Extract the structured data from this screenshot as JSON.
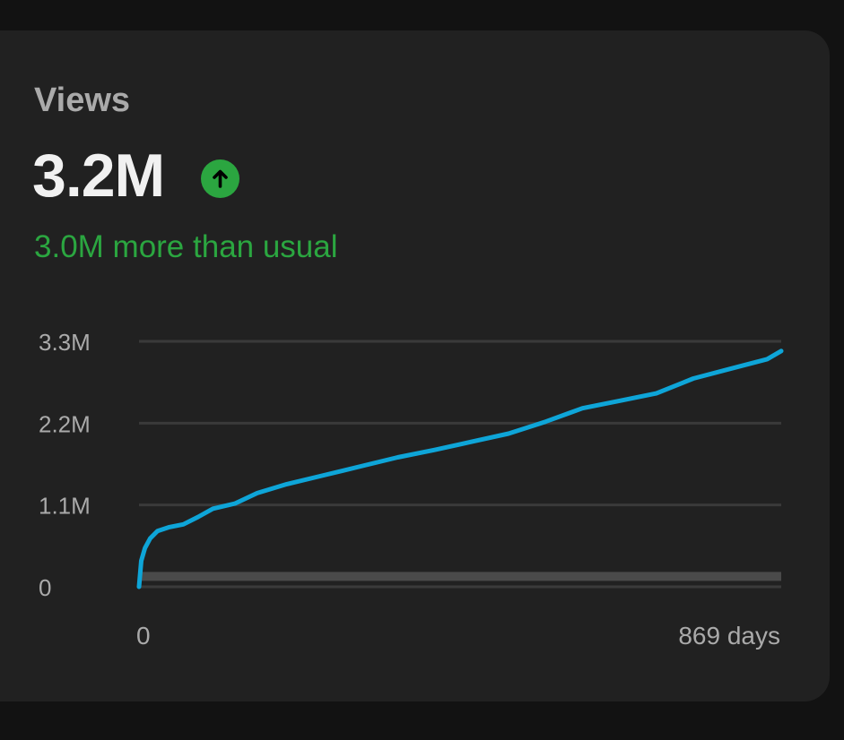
{
  "metric": {
    "title": "Views",
    "value": "3.2M",
    "delta_text": "3.0M more than usual",
    "trend_icon": "arrow-up-circle-icon",
    "trend_direction": "up"
  },
  "colors": {
    "background": "#121212",
    "card": "#212121",
    "line": "#0ea5d8",
    "typical_band": "#4a4a4a",
    "grid": "#3a3a3a",
    "positive": "#2ba640",
    "title_text": "#aaaaaa",
    "value_text": "#f1f1f1"
  },
  "chart_data": {
    "type": "line",
    "title": "",
    "xlabel": "",
    "ylabel": "",
    "xlim": [
      0,
      869
    ],
    "ylim": [
      0,
      3.3
    ],
    "y_unit": "M",
    "yticks": [
      {
        "value": 0,
        "label": "0"
      },
      {
        "value": 1.1,
        "label": "1.1M"
      },
      {
        "value": 2.2,
        "label": "2.2M"
      },
      {
        "value": 3.3,
        "label": "3.3M"
      }
    ],
    "xticks": [
      {
        "value": 0,
        "label": "0"
      },
      {
        "value": 869,
        "label": "869 days"
      }
    ],
    "grid": true,
    "series": [
      {
        "values": [
          [
            0,
            0.0
          ],
          [
            3,
            0.35
          ],
          [
            8,
            0.52
          ],
          [
            15,
            0.65
          ],
          [
            25,
            0.75
          ],
          [
            40,
            0.8
          ],
          [
            60,
            0.84
          ],
          [
            80,
            0.94
          ],
          [
            100,
            1.05
          ],
          [
            130,
            1.12
          ],
          [
            160,
            1.26
          ],
          [
            200,
            1.38
          ],
          [
            250,
            1.5
          ],
          [
            300,
            1.62
          ],
          [
            350,
            1.74
          ],
          [
            400,
            1.84
          ],
          [
            450,
            1.95
          ],
          [
            500,
            2.06
          ],
          [
            550,
            2.22
          ],
          [
            600,
            2.4
          ],
          [
            650,
            2.5
          ],
          [
            700,
            2.6
          ],
          [
            750,
            2.8
          ],
          [
            800,
            2.93
          ],
          [
            850,
            3.06
          ],
          [
            869,
            3.17
          ]
        ]
      }
    ],
    "typical_range": {
      "x": [
        0,
        869
      ],
      "low": [
        0.08,
        0.08
      ],
      "high": [
        0.2,
        0.2
      ]
    }
  }
}
